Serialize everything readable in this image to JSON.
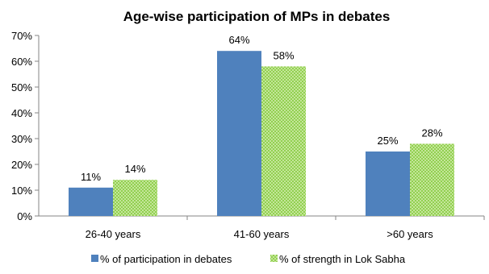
{
  "chart_data": {
    "type": "bar",
    "title": "Age-wise participation of MPs in debates",
    "categories": [
      "26-40 years",
      "41-60 years",
      ">60 years"
    ],
    "series": [
      {
        "name": "% of participation  in debates",
        "values": [
          11,
          64,
          25
        ],
        "labels": [
          "11%",
          "64%",
          "25%"
        ],
        "color": "#4f81bd",
        "pattern": "solid"
      },
      {
        "name": "% of strength in Lok Sabha",
        "values": [
          14,
          58,
          28
        ],
        "labels": [
          "14%",
          "58%",
          "28%"
        ],
        "color": "#92d050",
        "pattern": "checkered"
      }
    ],
    "ylim": [
      0,
      70
    ],
    "yticks": [
      0,
      10,
      20,
      30,
      40,
      50,
      60,
      70
    ],
    "ytick_labels": [
      "0%",
      "10%",
      "20%",
      "30%",
      "40%",
      "50%",
      "60%",
      "70%"
    ],
    "xlabel": "",
    "ylabel": "",
    "grid": false,
    "legend_position": "bottom"
  }
}
